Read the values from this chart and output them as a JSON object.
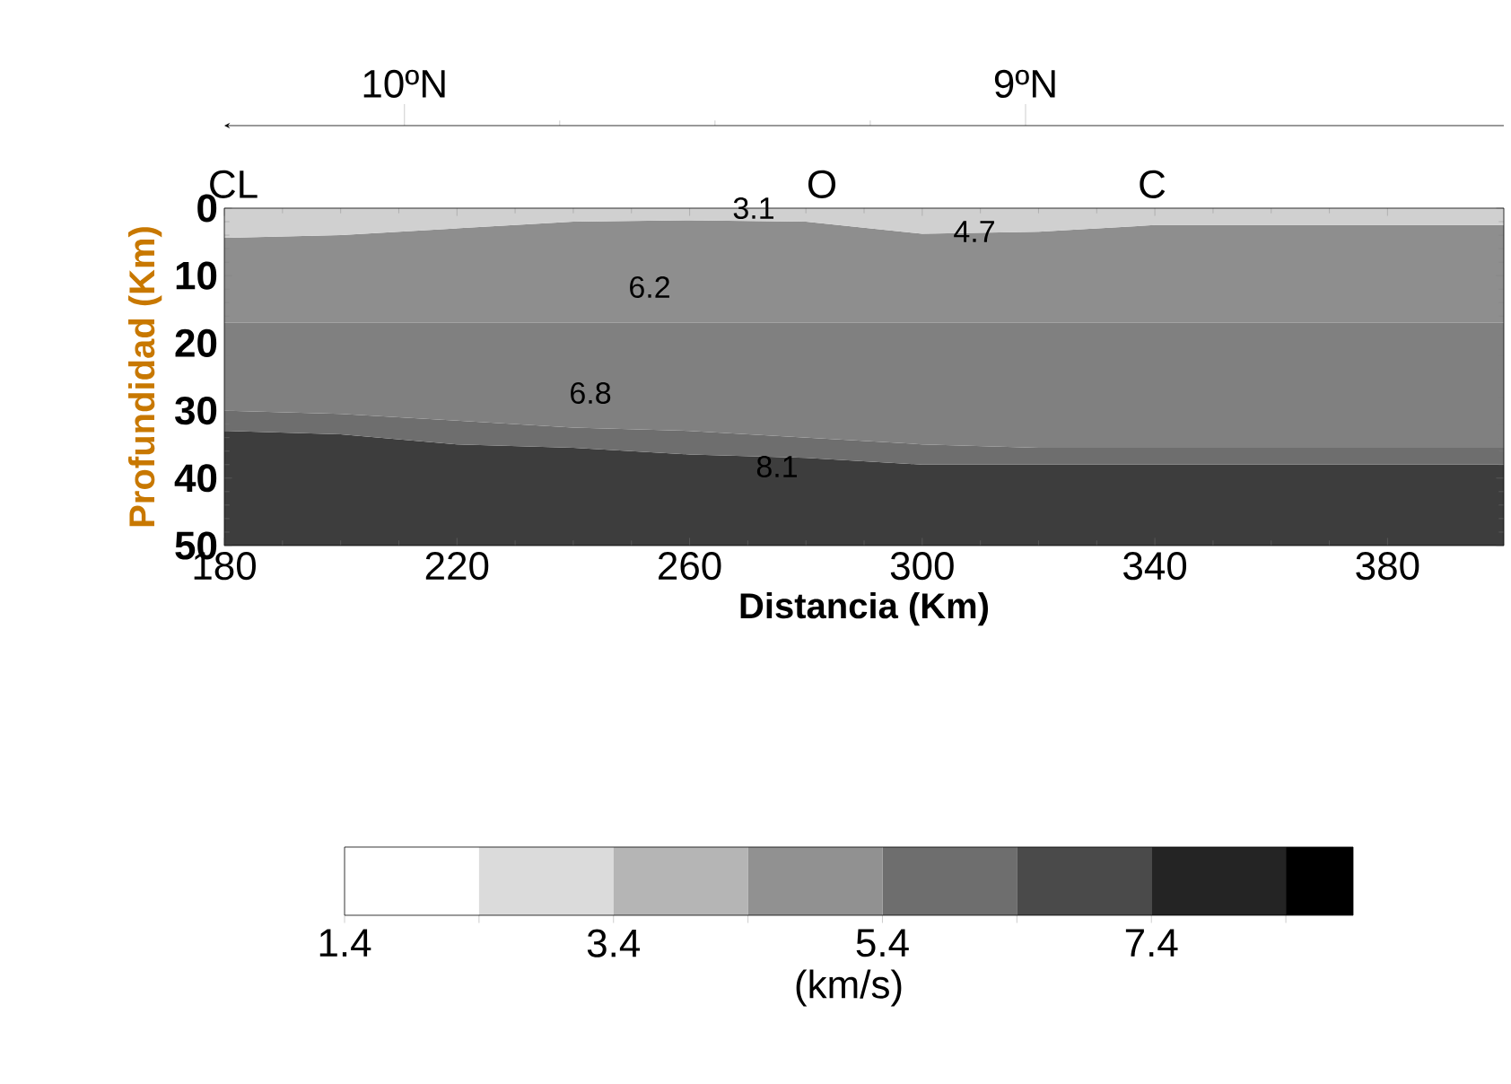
{
  "chart_data": {
    "type": "area",
    "stacked": true,
    "xlabel": "Distancia (Km)",
    "ylabel": "Profundidad (Km)",
    "clabel": "(km/s)",
    "x": [
      180,
      200,
      220,
      240,
      260,
      280,
      300,
      320,
      340,
      360,
      380,
      400
    ],
    "series": [
      {
        "color": "#d0d0d0",
        "values": [
          4.4,
          4,
          3,
          2,
          1.8,
          2,
          3.8,
          3.5,
          2.5,
          2.5,
          2.5,
          2.5
        ]
      },
      {
        "color": "#8e8e8e",
        "values": [
          12.6,
          13,
          14,
          15,
          15.2,
          15,
          13.2,
          13.5,
          14.5,
          14.5,
          14.5,
          14.5
        ]
      },
      {
        "color": "#808080",
        "values": [
          13,
          13.5,
          14.5,
          15.5,
          16,
          17,
          18,
          18.5,
          18.5,
          18.5,
          18.5,
          18.5
        ]
      },
      {
        "color": "#6e6e6e",
        "values": [
          3,
          3,
          3.5,
          3,
          3.5,
          3,
          3,
          2.5,
          2.5,
          2.5,
          2.5,
          2.5
        ]
      },
      {
        "color": "#3d3d3d",
        "values": [
          17,
          16.5,
          15,
          14.5,
          13.5,
          13,
          12,
          12,
          12,
          12,
          12,
          12
        ]
      }
    ],
    "xlim": [
      180,
      400
    ],
    "xticks": [
      180,
      220,
      260,
      300,
      340,
      380
    ],
    "ylim": [
      50,
      0
    ],
    "yticks": [
      0,
      10,
      20,
      30,
      40,
      50
    ],
    "x2lim": [
      10.29,
      8.23
    ],
    "x2ticks": [
      {
        "value": 10,
        "label": "10ºN"
      },
      {
        "value": 9,
        "label": "9ºN"
      }
    ],
    "clim": [
      1.4,
      8.9
    ],
    "cticks": [
      1.4,
      {
        "value": 2.4,
        "label": null
      },
      3.4,
      {
        "value": 4.4,
        "label": null
      },
      5.4,
      {
        "value": 6.4,
        "label": null
      },
      7.4,
      {
        "value": 8.4,
        "label": null
      }
    ],
    "annotations": [
      "CL",
      "O",
      "C",
      "3.1",
      "4.7",
      "6.2",
      "6.8",
      "8.1"
    ]
  }
}
